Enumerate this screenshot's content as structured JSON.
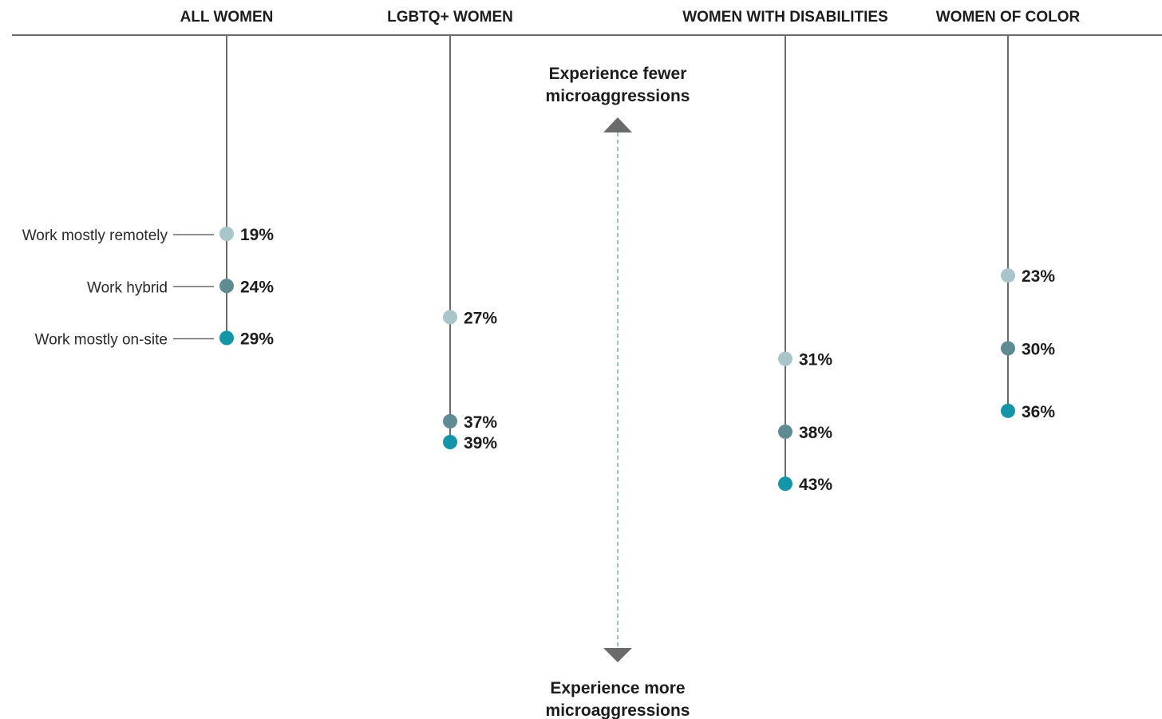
{
  "chart_data": {
    "type": "scatter",
    "categories": [
      "ALL WOMEN",
      "LGBTQ+ WOMEN",
      "WOMEN WITH DISABILITIES",
      "WOMEN OF COLOR"
    ],
    "series": [
      {
        "name": "Work mostly remotely",
        "values": [
          19,
          27,
          31,
          23
        ],
        "labels": [
          "19%",
          "27%",
          "31%",
          "23%"
        ],
        "color": "#a8c5ca"
      },
      {
        "name": "Work hybrid",
        "values": [
          24,
          37,
          38,
          30
        ],
        "labels": [
          "24%",
          "37%",
          "38%",
          "30%"
        ],
        "color": "#5f8c93"
      },
      {
        "name": "Work mostly on-site",
        "values": [
          29,
          39,
          43,
          36
        ],
        "labels": [
          "29%",
          "39%",
          "43%",
          "36%"
        ],
        "color": "#1397a8"
      }
    ],
    "annotations": {
      "top": [
        "Experience fewer",
        "microaggressions"
      ],
      "bottom": [
        "Experience more",
        "microaggressions"
      ]
    },
    "y_direction": "values increase downward",
    "grid": false,
    "legend": "left"
  }
}
